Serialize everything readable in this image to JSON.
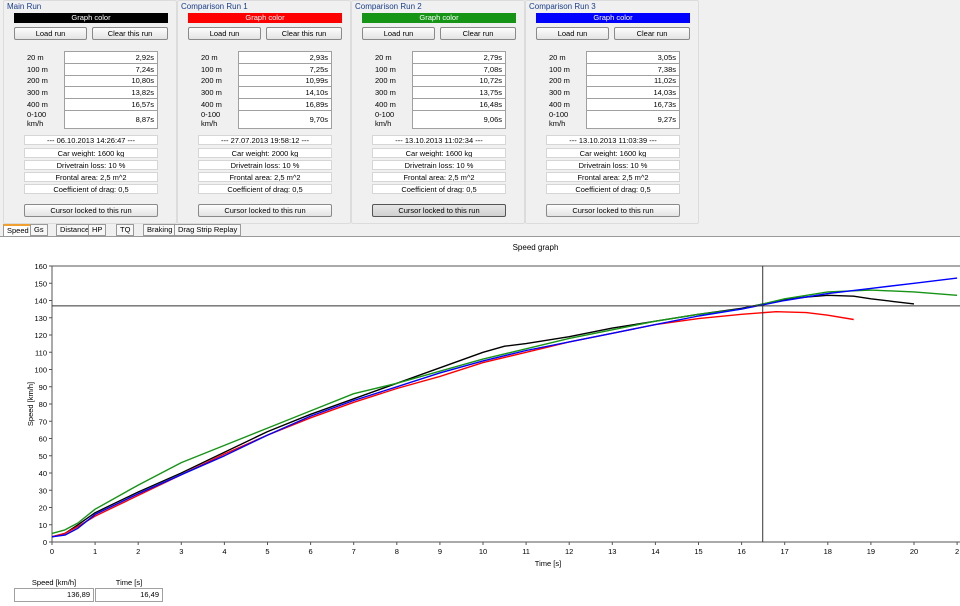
{
  "runs": [
    {
      "title": "Main Run",
      "graph_color_label": "Graph color",
      "color": "#000000",
      "load_label": "Load run",
      "clear_label": "Clear this run",
      "splits": [
        {
          "label": "20 m",
          "value": "2,92s"
        },
        {
          "label": "100 m",
          "value": "7,24s"
        },
        {
          "label": "200 m",
          "value": "10,80s"
        },
        {
          "label": "300 m",
          "value": "13,82s"
        },
        {
          "label": "400 m",
          "value": "16,57s"
        },
        {
          "label": "0-100 km/h",
          "value": "8,87s"
        }
      ],
      "date": "--- 06.10.2013 14:26:47 ---",
      "car_weight": "Car weight: 1600 kg",
      "drivetrain_loss": "Drivetrain loss: 10 %",
      "frontal_area": "Frontal area: 2,5 m^2",
      "drag": "Coefficient of drag: 0,5",
      "cursor_label": "Cursor locked to this run"
    },
    {
      "title": "Comparison Run 1",
      "graph_color_label": "Graph color",
      "color": "#ff0000",
      "load_label": "Load run",
      "clear_label": "Clear this run",
      "splits": [
        {
          "label": "20 m",
          "value": "2,93s"
        },
        {
          "label": "100 m",
          "value": "7,25s"
        },
        {
          "label": "200 m",
          "value": "10,99s"
        },
        {
          "label": "300 m",
          "value": "14,10s"
        },
        {
          "label": "400 m",
          "value": "16,89s"
        },
        {
          "label": "0-100 km/h",
          "value": "9,70s"
        }
      ],
      "date": "--- 27.07.2013 19:58:12 ---",
      "car_weight": "Car weight: 2000 kg",
      "drivetrain_loss": "Drivetrain loss: 10 %",
      "frontal_area": "Frontal area: 2,5 m^2",
      "drag": "Coefficient of drag: 0,5",
      "cursor_label": "Cursor locked to this run"
    },
    {
      "title": "Comparison Run 2",
      "graph_color_label": "Graph color",
      "color": "#159415",
      "load_label": "Load run",
      "clear_label": "Clear run",
      "splits": [
        {
          "label": "20 m",
          "value": "2,79s"
        },
        {
          "label": "100 m",
          "value": "7,08s"
        },
        {
          "label": "200 m",
          "value": "10,72s"
        },
        {
          "label": "300 m",
          "value": "13,75s"
        },
        {
          "label": "400 m",
          "value": "16,48s"
        },
        {
          "label": "0-100 km/h",
          "value": "9,06s"
        }
      ],
      "date": "--- 13.10.2013 11:02:34 ---",
      "car_weight": "Car weight: 1600 kg",
      "drivetrain_loss": "Drivetrain loss: 10 %",
      "frontal_area": "Frontal area: 2,5 m^2",
      "drag": "Coefficient of drag: 0,5",
      "cursor_label": "Cursor locked to this run"
    },
    {
      "title": "Comparison Run 3",
      "graph_color_label": "Graph color",
      "color": "#0000ff",
      "load_label": "Load run",
      "clear_label": "Clear run",
      "splits": [
        {
          "label": "20 m",
          "value": "3,05s"
        },
        {
          "label": "100 m",
          "value": "7,38s"
        },
        {
          "label": "200 m",
          "value": "11,02s"
        },
        {
          "label": "300 m",
          "value": "14,03s"
        },
        {
          "label": "400 m",
          "value": "16,73s"
        },
        {
          "label": "0-100 km/h",
          "value": "9,27s"
        }
      ],
      "date": "--- 13.10.2013 11:03:39 ---",
      "car_weight": "Car weight: 1600 kg",
      "drivetrain_loss": "Drivetrain loss: 10 %",
      "frontal_area": "Frontal area: 2,5 m^2",
      "drag": "Coefficient of drag: 0,5",
      "cursor_label": "Cursor locked to this run"
    }
  ],
  "cursor_locked_run": 2,
  "tabs": [
    "Speed",
    "Gs",
    "Distance",
    "HP",
    "TQ",
    "Braking",
    "Drag Strip Replay"
  ],
  "active_tab": 0,
  "readouts": {
    "speed_label": "Speed [km/h]",
    "speed_value": "136,89",
    "time_label": "Time [s]",
    "time_value": "16,49"
  },
  "chart_data": {
    "type": "line",
    "title": "Speed graph",
    "xlabel": "Time [s]",
    "ylabel": "Speed [km/h]",
    "xlim": [
      0,
      21
    ],
    "ylim": [
      0,
      160
    ],
    "xticks": [
      "0",
      "1",
      "2",
      "3",
      "4",
      "5",
      "6",
      "7",
      "8",
      "9",
      "10",
      "11",
      "12",
      "13",
      "14",
      "15",
      "16",
      "17",
      "18",
      "19",
      "20",
      "2"
    ],
    "yticks": [
      "0",
      "10",
      "20",
      "30",
      "40",
      "50",
      "60",
      "70",
      "80",
      "90",
      "100",
      "110",
      "120",
      "130",
      "140",
      "150",
      "160"
    ],
    "cursor": {
      "x": 16.49,
      "y": 136.89
    },
    "series": [
      {
        "color": "#000000",
        "points": [
          [
            0,
            3
          ],
          [
            0.3,
            5
          ],
          [
            0.6,
            10
          ],
          [
            1,
            17
          ],
          [
            2,
            29
          ],
          [
            3,
            40
          ],
          [
            4,
            52
          ],
          [
            5,
            64
          ],
          [
            6,
            74
          ],
          [
            7,
            83
          ],
          [
            8,
            92
          ],
          [
            9,
            101
          ],
          [
            10,
            110
          ],
          [
            10.5,
            113.5
          ],
          [
            11,
            115
          ],
          [
            12,
            119
          ],
          [
            13,
            124
          ],
          [
            14,
            128
          ],
          [
            15,
            132
          ],
          [
            16,
            135.5
          ],
          [
            17,
            140.5
          ],
          [
            17.5,
            142
          ],
          [
            18,
            143
          ],
          [
            18.6,
            142.5
          ],
          [
            19,
            141
          ],
          [
            19.5,
            139.5
          ],
          [
            20,
            138
          ]
        ]
      },
      {
        "color": "#ff0000",
        "points": [
          [
            0,
            3
          ],
          [
            0.3,
            5
          ],
          [
            0.6,
            9
          ],
          [
            1,
            15
          ],
          [
            2,
            27
          ],
          [
            3,
            39
          ],
          [
            4,
            51
          ],
          [
            5,
            62
          ],
          [
            6,
            72
          ],
          [
            7,
            81
          ],
          [
            8,
            89
          ],
          [
            9,
            96
          ],
          [
            10,
            104
          ],
          [
            11,
            110
          ],
          [
            12,
            116
          ],
          [
            13,
            121
          ],
          [
            14,
            126
          ],
          [
            15,
            129.5
          ],
          [
            16,
            132
          ],
          [
            16.8,
            133.5
          ],
          [
            17.5,
            133
          ],
          [
            18,
            131.5
          ],
          [
            18.6,
            129
          ]
        ]
      },
      {
        "color": "#159415",
        "points": [
          [
            0,
            5
          ],
          [
            0.3,
            7
          ],
          [
            0.6,
            11
          ],
          [
            1,
            19
          ],
          [
            2,
            33
          ],
          [
            3,
            46
          ],
          [
            4,
            56
          ],
          [
            5,
            66
          ],
          [
            6,
            76
          ],
          [
            7,
            86
          ],
          [
            8,
            92
          ],
          [
            9,
            99
          ],
          [
            10,
            106
          ],
          [
            11,
            112
          ],
          [
            12,
            118
          ],
          [
            13,
            123
          ],
          [
            14,
            128
          ],
          [
            15,
            132
          ],
          [
            16,
            135
          ],
          [
            17,
            141
          ],
          [
            18,
            145
          ],
          [
            19,
            146
          ],
          [
            20,
            145
          ],
          [
            21,
            143
          ]
        ]
      },
      {
        "color": "#0000ff",
        "points": [
          [
            0,
            3
          ],
          [
            0.3,
            4
          ],
          [
            0.6,
            8
          ],
          [
            1,
            16
          ],
          [
            2,
            28
          ],
          [
            3,
            39
          ],
          [
            4,
            50
          ],
          [
            5,
            62
          ],
          [
            6,
            73
          ],
          [
            7,
            82
          ],
          [
            8,
            90
          ],
          [
            9,
            98
          ],
          [
            10,
            105
          ],
          [
            11,
            111
          ],
          [
            12,
            116
          ],
          [
            13,
            121
          ],
          [
            14,
            126
          ],
          [
            15,
            131
          ],
          [
            16,
            135
          ],
          [
            17,
            140
          ],
          [
            18,
            144
          ],
          [
            19,
            147
          ],
          [
            20,
            150
          ],
          [
            21,
            153
          ]
        ]
      }
    ]
  }
}
